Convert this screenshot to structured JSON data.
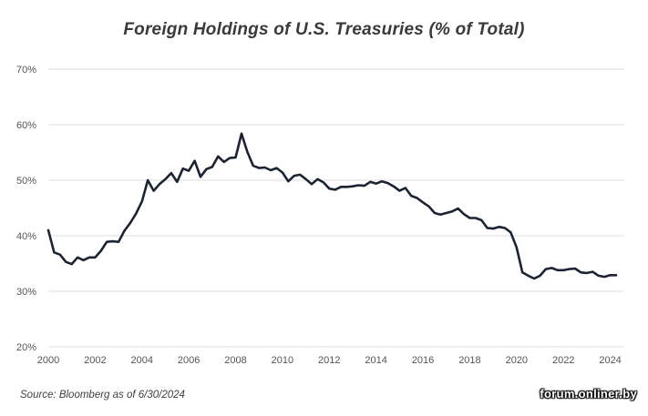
{
  "chart_data": {
    "type": "line",
    "title": "Foreign Holdings of U.S. Treasuries (% of Total)",
    "xlabel": "",
    "ylabel": "",
    "xlim": [
      2000,
      2024.5
    ],
    "ylim": [
      20,
      70
    ],
    "x_ticks": [
      2000,
      2002,
      2004,
      2006,
      2008,
      2010,
      2012,
      2014,
      2016,
      2018,
      2020,
      2022,
      2024
    ],
    "x_tick_labels": [
      "2000",
      "2002",
      "2004",
      "2006",
      "2008",
      "2010",
      "2012",
      "2014",
      "2016",
      "2018",
      "2020",
      "2022",
      "2024"
    ],
    "y_ticks": [
      20,
      30,
      40,
      50,
      60,
      70
    ],
    "y_tick_labels": [
      "20%",
      "30%",
      "40%",
      "50%",
      "60%",
      "70%"
    ],
    "grid": "horizontal",
    "line_color": "#1c2333",
    "series": [
      {
        "x": [
          2000.0,
          2000.25,
          2000.5,
          2000.75,
          2001.0,
          2001.25,
          2001.5,
          2001.75,
          2002.0,
          2002.25,
          2002.5,
          2002.75,
          2003.0,
          2003.25,
          2003.5,
          2003.75,
          2004.0,
          2004.25,
          2004.5,
          2004.75,
          2005.0,
          2005.25,
          2005.5,
          2005.75,
          2006.0,
          2006.25,
          2006.5,
          2006.75,
          2007.0,
          2007.25,
          2007.5,
          2007.75,
          2008.0,
          2008.25,
          2008.5,
          2008.75,
          2009.0,
          2009.25,
          2009.5,
          2009.75,
          2010.0,
          2010.25,
          2010.5,
          2010.75,
          2011.0,
          2011.25,
          2011.5,
          2011.75,
          2012.0,
          2012.25,
          2012.5,
          2012.75,
          2013.0,
          2013.25,
          2013.5,
          2013.75,
          2014.0,
          2014.25,
          2014.5,
          2014.75,
          2015.0,
          2015.25,
          2015.5,
          2015.75,
          2016.0,
          2016.25,
          2016.5,
          2016.75,
          2017.0,
          2017.25,
          2017.5,
          2017.75,
          2018.0,
          2018.25,
          2018.5,
          2018.75,
          2019.0,
          2019.25,
          2019.5,
          2019.75,
          2020.0,
          2020.25,
          2020.5,
          2020.75,
          2021.0,
          2021.25,
          2021.5,
          2021.75,
          2022.0,
          2022.25,
          2022.5,
          2022.75,
          2023.0,
          2023.25,
          2023.5,
          2023.75,
          2024.0,
          2024.25
        ],
        "values": [
          41.0,
          37.0,
          36.6,
          35.3,
          34.9,
          36.1,
          35.6,
          36.1,
          36.1,
          37.3,
          38.9,
          39.0,
          38.9,
          40.9,
          42.3,
          44.0,
          46.2,
          50.0,
          48.1,
          49.3,
          50.2,
          51.3,
          49.7,
          52.1,
          51.7,
          53.5,
          50.6,
          52.0,
          52.4,
          54.3,
          53.3,
          54.0,
          54.1,
          58.4,
          55.1,
          52.6,
          52.2,
          52.3,
          51.8,
          52.2,
          51.4,
          49.8,
          50.8,
          51.0,
          50.2,
          49.3,
          50.2,
          49.6,
          48.5,
          48.3,
          48.8,
          48.8,
          48.9,
          49.1,
          49.0,
          49.7,
          49.4,
          49.8,
          49.5,
          48.9,
          48.1,
          48.6,
          47.2,
          46.8,
          46.0,
          45.3,
          44.1,
          43.8,
          44.1,
          44.4,
          44.9,
          43.9,
          43.2,
          43.2,
          42.8,
          41.4,
          41.3,
          41.6,
          41.4,
          40.6,
          37.9,
          33.4,
          32.8,
          32.3,
          32.8,
          34.0,
          34.2,
          33.8,
          33.8,
          34.0,
          34.1,
          33.4,
          33.3,
          33.5,
          32.8,
          32.6,
          32.9,
          32.9
        ]
      }
    ]
  },
  "source_note": "Source: Bloomberg as of 6/30/2024",
  "watermark": "forum.onliner.by"
}
